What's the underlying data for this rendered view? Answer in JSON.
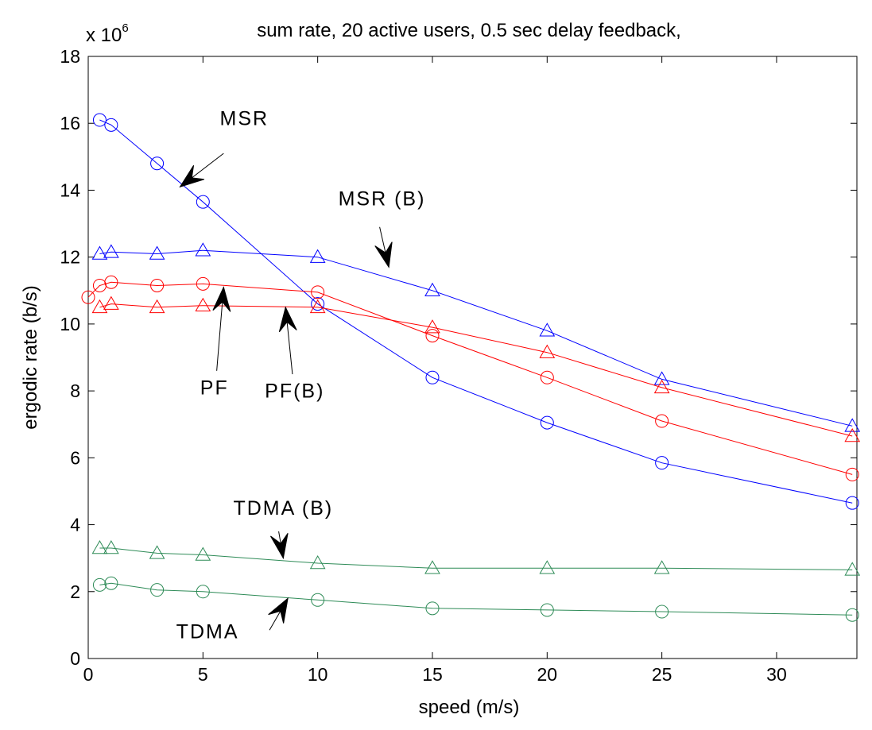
{
  "chart_data": {
    "type": "line",
    "title": "sum rate, 20 active users, 0.5 sec delay feedback,",
    "xlabel": "speed (m/s)",
    "ylabel": "ergodic rate (b/s)",
    "y_multiplier": {
      "base": "x 10",
      "exponent": "6"
    },
    "xlim": [
      0,
      33.5
    ],
    "ylim": [
      0,
      18
    ],
    "xticks": [
      0,
      5,
      10,
      15,
      20,
      25,
      30
    ],
    "yticks": [
      0,
      2,
      4,
      6,
      8,
      10,
      12,
      14,
      16,
      18
    ],
    "grid": false,
    "legend": "none",
    "series": [
      {
        "name": "MSR",
        "color": "#0000ff",
        "marker": "circle",
        "x": [
          0.5,
          1,
          3,
          5,
          10,
          15,
          20,
          25,
          33.3
        ],
        "y": [
          16.1,
          15.95,
          14.8,
          13.65,
          10.6,
          8.4,
          7.05,
          5.85,
          4.65
        ]
      },
      {
        "name": "MSR (B)",
        "color": "#0000ff",
        "marker": "triangle",
        "x": [
          0.5,
          1,
          3,
          5,
          10,
          15,
          20,
          25,
          33.3
        ],
        "y": [
          12.1,
          12.15,
          12.1,
          12.2,
          12.0,
          11.0,
          9.8,
          8.35,
          6.95
        ]
      },
      {
        "name": "PF",
        "color": "#ff0000",
        "marker": "circle",
        "x": [
          0,
          0.5,
          1,
          3,
          5,
          10,
          15,
          20,
          25,
          33.3
        ],
        "y": [
          10.8,
          11.15,
          11.25,
          11.15,
          11.2,
          10.95,
          9.65,
          8.4,
          7.1,
          5.5
        ]
      },
      {
        "name": "PF(B)",
        "color": "#ff0000",
        "marker": "triangle",
        "x": [
          0.5,
          1,
          3,
          5,
          10,
          15,
          20,
          25,
          33.3
        ],
        "y": [
          10.5,
          10.6,
          10.5,
          10.55,
          10.5,
          9.9,
          9.15,
          8.1,
          6.65
        ]
      },
      {
        "name": "TDMA (B)",
        "color": "#2e8b57",
        "marker": "triangle",
        "x": [
          0.5,
          1,
          3,
          5,
          10,
          15,
          20,
          25,
          33.3
        ],
        "y": [
          3.3,
          3.3,
          3.15,
          3.1,
          2.85,
          2.7,
          2.7,
          2.7,
          2.65
        ]
      },
      {
        "name": "TDMA",
        "color": "#2e8b57",
        "marker": "circle",
        "x": [
          0.5,
          1,
          3,
          5,
          10,
          15,
          20,
          25,
          33.3
        ],
        "y": [
          2.2,
          2.25,
          2.05,
          2.0,
          1.75,
          1.5,
          1.45,
          1.4,
          1.3
        ]
      }
    ],
    "annotations": [
      {
        "label": "MSR",
        "text_at": [
          6.8,
          15.95
        ],
        "arrow_tail": [
          5.9,
          15.1
        ],
        "arrow_tip": [
          4.0,
          14.1
        ]
      },
      {
        "label": "MSR (B)",
        "text_at": [
          12.8,
          13.55
        ],
        "arrow_tail": [
          12.7,
          12.9
        ],
        "arrow_tip": [
          13.1,
          11.7
        ]
      },
      {
        "label": "PF",
        "text_at": [
          5.5,
          7.9
        ],
        "arrow_tail": [
          5.6,
          8.6
        ],
        "arrow_tip": [
          5.9,
          11.1
        ]
      },
      {
        "label": "PF(B)",
        "text_at": [
          9.0,
          7.8
        ],
        "arrow_tail": [
          8.9,
          8.5
        ],
        "arrow_tip": [
          8.6,
          10.5
        ]
      },
      {
        "label": "TDMA (B)",
        "text_at": [
          8.5,
          4.3
        ],
        "arrow_tail": [
          8.3,
          3.8
        ],
        "arrow_tip": [
          8.5,
          3.0
        ]
      },
      {
        "label": "TDMA",
        "text_at": [
          5.2,
          0.6
        ],
        "arrow_tail": [
          7.9,
          0.85
        ],
        "arrow_tip": [
          8.7,
          1.8
        ]
      }
    ]
  }
}
